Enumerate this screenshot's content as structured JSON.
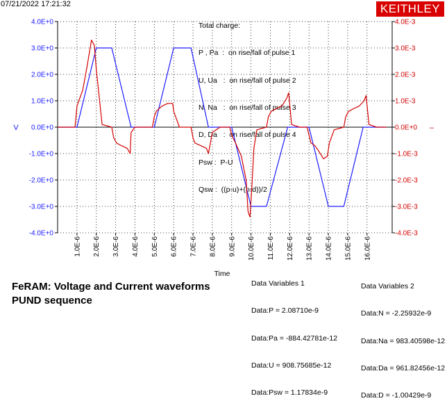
{
  "header": {
    "timestamp": "07/21/2022 17:21:32",
    "logo_text": "KEITHLEY",
    "logo_color": "#d90000"
  },
  "legend": {
    "lines": [
      "Total charge:",
      "P , Pa  :  on rise/fall of pulse 1",
      "U, Ua   :  on rise/fall of pulse 2",
      "N, Na   :  on rise/fall of pulse 3",
      "D, Da   :  on rise/fall of pulse 4",
      "Psw :  P-U",
      "Qsw :  ((p-u)+(n-d))/2"
    ]
  },
  "footer": {
    "title_line1": "FeRAM: Voltage and Current waveforms",
    "title_line2": "PUND sequence"
  },
  "data_variables_1": {
    "heading": "Data Variables 1",
    "lines": [
      "Data:P = 2.08710e-9",
      "Data:Pa = -884.42781e-12",
      "Data:U = 908.75685e-12",
      "Data:Psw = 1.17834e-9"
    ]
  },
  "data_variables_2": {
    "heading": "Data Variables 2",
    "lines": [
      "Data:N = -2.25932e-9",
      "Data:Na = 983.40598e-12",
      "Data:Da = 961.82456e-12",
      "Data:D = -1.00429e-9"
    ]
  },
  "chart_data": {
    "type": "line",
    "title": "",
    "xlabel": "Time",
    "ylabel": "V",
    "ylabel_right": "–",
    "grid": true,
    "xlim": [
      0,
      1.73e-05
    ],
    "ylim": [
      -4.0,
      4.0
    ],
    "ylim_right": [
      -0.004,
      0.004
    ],
    "x_ticks": [
      "1.0E-6",
      "2.0E-6",
      "3.0E-6",
      "4.0E-6",
      "5.0E-6",
      "6.0E-6",
      "7.0E-6",
      "8.0E-6",
      "9.0E-6",
      "10.0E-6",
      "11.0E-6",
      "12.0E-6",
      "13.0E-6",
      "14.0E-6",
      "15.0E-6",
      "16.0E-6"
    ],
    "x_tick_values": [
      1e-06,
      2e-06,
      3e-06,
      4e-06,
      5e-06,
      6e-06,
      7e-06,
      8e-06,
      9e-06,
      1e-05,
      1.1e-05,
      1.2e-05,
      1.3e-05,
      1.4e-05,
      1.5e-05,
      1.6e-05
    ],
    "y_ticks_left": [
      "4.0E+0",
      "3.0E+0",
      "2.0E+0",
      "1.0E+0",
      "0.0E+0",
      "-1.0E+0",
      "-2.0E+0",
      "-3.0E+0",
      "-4.0E+0"
    ],
    "y_ticks_left_values": [
      4,
      3,
      2,
      1,
      0,
      -1,
      -2,
      -3,
      -4
    ],
    "y_ticks_right": [
      "4.0E-3",
      "3.0E-3",
      "2.0E-3",
      "1.0E-3",
      "0.0E+0",
      "-1.0E-3",
      "-2.0E-3",
      "-3.0E-3",
      "-4.0E-3"
    ],
    "y_ticks_right_values": [
      0.004,
      0.003,
      0.002,
      0.001,
      0,
      -0.001,
      -0.002,
      -0.003,
      -0.004
    ],
    "colors": {
      "voltage": "#1a1aff",
      "current": "#d40000",
      "axes": "#000000",
      "grid": "#000000"
    },
    "series": [
      {
        "axis": "left",
        "color": "#1a1aff",
        "x": [
          0,
          5e-07,
          1e-06,
          2e-06,
          2.8e-06,
          3.8e-06,
          4.5e-06,
          5e-06,
          6e-06,
          6.9e-06,
          7.8e-06,
          8.5e-06,
          9e-06,
          1e-05,
          1.08e-05,
          1.19e-05,
          1.25e-05,
          1.3e-05,
          1.4e-05,
          1.48e-05,
          1.58e-05,
          1.64e-05,
          1.7e-05
        ],
        "y": [
          0,
          0,
          0,
          3.0,
          3.0,
          0,
          0,
          0,
          3.0,
          3.0,
          0,
          0,
          0,
          -3.0,
          -3.0,
          0,
          0,
          0,
          -3.0,
          -3.0,
          0,
          0,
          0
        ]
      },
      {
        "axis": "right",
        "color": "#d40000",
        "x": [
          0,
          9e-07,
          1e-06,
          1.1e-06,
          1.3e-06,
          1.5e-06,
          1.75e-06,
          1.9e-06,
          2e-06,
          2.3e-06,
          2.8e-06,
          2.9e-06,
          3.05e-06,
          3.3e-06,
          3.6e-06,
          3.75e-06,
          3.8e-06,
          4e-06,
          4.2e-06,
          4.5e-06,
          4.9e-06,
          5e-06,
          5.1e-06,
          5.4e-06,
          5.7e-06,
          5.95e-06,
          6e-06,
          6.3e-06,
          6.9e-06,
          7e-06,
          7.1e-06,
          7.4e-06,
          7.7e-06,
          7.8e-06,
          8e-06,
          8.4e-06,
          8.9e-06,
          9e-06,
          9.2e-06,
          9.5e-06,
          9.75e-06,
          9.85e-06,
          9.95e-06,
          1.005e-05,
          1.015e-05,
          1.03e-05,
          1.08e-05,
          1.09e-05,
          1.105e-05,
          1.13e-05,
          1.16e-05,
          1.185e-05,
          1.195e-05,
          1.21e-05,
          1.25e-05,
          1.29e-05,
          1.3e-05,
          1.31e-05,
          1.33e-05,
          1.35e-05,
          1.375e-05,
          1.395e-05,
          1.405e-05,
          1.43e-05,
          1.48e-05,
          1.49e-05,
          1.505e-05,
          1.53e-05,
          1.56e-05,
          1.585e-05,
          1.595e-05,
          1.61e-05,
          1.65e-05,
          1.7e-05
        ],
        "y": [
          0,
          0,
          0.0008,
          0.001,
          0.0014,
          0.0022,
          0.0033,
          0.0031,
          0.0022,
          0.0001,
          0,
          -0.0004,
          -0.0006,
          -0.0007,
          -0.0008,
          -0.001,
          -0.0002,
          0,
          0,
          0,
          0,
          0.0004,
          0.0006,
          0.0008,
          0.0009,
          0.0009,
          0.0006,
          0,
          0,
          -0.0004,
          -0.0006,
          -0.0007,
          -0.0008,
          -0.001,
          -0.0002,
          0,
          0,
          -0.0003,
          -0.0006,
          -0.0011,
          -0.002,
          -0.0032,
          -0.0034,
          -0.0022,
          -0.0008,
          -0.0001,
          0,
          0.0004,
          0.0006,
          0.0007,
          0.0008,
          0.0011,
          0.0013,
          0.0001,
          0,
          0,
          -0.0003,
          -0.0006,
          -0.0007,
          -0.0009,
          -0.0012,
          -0.0011,
          -0.0006,
          -0.0001,
          0,
          0.0004,
          0.0006,
          0.0007,
          0.0008,
          0.001,
          0.0012,
          0.0001,
          0,
          0
        ]
      }
    ]
  }
}
